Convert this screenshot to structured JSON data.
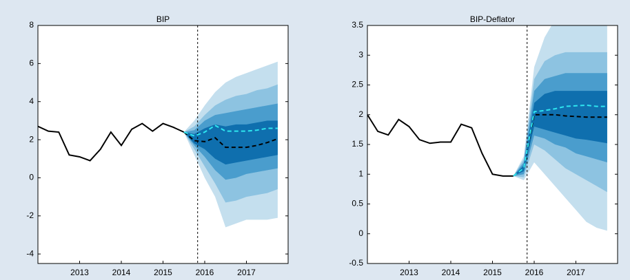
{
  "chart_data": [
    {
      "type": "fan",
      "title": "BIP",
      "xlim": [
        2012,
        2018
      ],
      "xticks": [
        2013,
        2014,
        2015,
        2016,
        2017
      ],
      "ylim": [
        -4.5,
        8
      ],
      "yticks": [
        -4,
        -2,
        0,
        2,
        4,
        6,
        8
      ],
      "vline": 2015.83,
      "forecast_x": [
        2015.5,
        2015.75,
        2016,
        2016.25,
        2016.5,
        2016.75,
        2017,
        2017.25,
        2017.5,
        2017.75
      ],
      "bands": [
        {
          "color": "#c4dfee",
          "upper": [
            2.4,
            3.0,
            3.8,
            4.5,
            5.0,
            5.3,
            5.5,
            5.7,
            5.9,
            6.1
          ],
          "lower": [
            2.4,
            1.2,
            0.0,
            -1.0,
            -2.6,
            -2.4,
            -2.2,
            -2.2,
            -2.2,
            -2.1
          ]
        },
        {
          "color": "#8dc3e1",
          "upper": [
            2.4,
            2.7,
            3.3,
            3.8,
            4.1,
            4.3,
            4.4,
            4.6,
            4.7,
            4.9
          ],
          "lower": [
            2.4,
            1.5,
            0.6,
            -0.3,
            -1.3,
            -1.2,
            -1.0,
            -0.9,
            -0.8,
            -0.6
          ]
        },
        {
          "color": "#4a9dcd",
          "upper": [
            2.4,
            2.5,
            3.0,
            3.3,
            3.4,
            3.5,
            3.6,
            3.7,
            3.8,
            3.9
          ],
          "lower": [
            2.4,
            1.7,
            1.1,
            0.4,
            -0.1,
            0.0,
            0.2,
            0.3,
            0.4,
            0.5
          ]
        },
        {
          "color": "#0f6fae",
          "upper": [
            2.4,
            2.3,
            2.6,
            2.8,
            2.7,
            2.8,
            2.8,
            2.9,
            3.0,
            3.0
          ],
          "lower": [
            2.4,
            1.8,
            1.5,
            1.0,
            0.7,
            0.8,
            0.9,
            1.0,
            1.1,
            1.2
          ]
        }
      ],
      "series": [
        {
          "color": "#000000",
          "dashed": false,
          "x": [
            2012,
            2012.25,
            2012.5,
            2012.75,
            2013,
            2013.25,
            2013.5,
            2013.75,
            2014,
            2014.25,
            2014.5,
            2014.75,
            2015,
            2015.25,
            2015.5
          ],
          "values": [
            2.7,
            2.45,
            2.4,
            1.2,
            1.1,
            0.9,
            1.5,
            2.4,
            1.7,
            2.55,
            2.85,
            2.45,
            2.85,
            2.65,
            2.4
          ]
        },
        {
          "color": "#000000",
          "dashed": true,
          "x": [
            2015.5,
            2015.75,
            2016,
            2016.25,
            2016.5,
            2016.75,
            2017,
            2017.25,
            2017.5,
            2017.75
          ],
          "values": [
            2.4,
            1.95,
            1.9,
            2.1,
            1.6,
            1.6,
            1.6,
            1.7,
            1.85,
            2.05
          ]
        },
        {
          "color": "#2ee6f0",
          "dashed": true,
          "x": [
            2015.5,
            2015.75,
            2016,
            2016.25,
            2016.5,
            2016.75,
            2017,
            2017.25,
            2017.5,
            2017.75
          ],
          "values": [
            2.4,
            2.2,
            2.4,
            2.75,
            2.45,
            2.45,
            2.45,
            2.5,
            2.6,
            2.6
          ]
        }
      ]
    },
    {
      "type": "fan",
      "title": "BIP-Deflator",
      "xlim": [
        2012,
        2018
      ],
      "xticks": [
        2013,
        2014,
        2015,
        2016,
        2017
      ],
      "ylim": [
        -0.5,
        3.5
      ],
      "yticks": [
        -0.5,
        0,
        0.5,
        1,
        1.5,
        2,
        2.5,
        3,
        3.5
      ],
      "vline": 2015.83,
      "forecast_x": [
        2015.5,
        2015.75,
        2016,
        2016.25,
        2016.5,
        2016.75,
        2017,
        2017.25,
        2017.5,
        2017.75
      ],
      "bands": [
        {
          "color": "#c4dfee",
          "upper": [
            0.97,
            1.3,
            2.8,
            3.3,
            3.6,
            3.7,
            3.8,
            3.8,
            3.8,
            3.8
          ],
          "lower": [
            0.97,
            0.9,
            1.2,
            1.0,
            0.8,
            0.6,
            0.4,
            0.2,
            0.1,
            0.05
          ]
        },
        {
          "color": "#8dc3e1",
          "upper": [
            0.97,
            1.25,
            2.6,
            2.9,
            3.0,
            3.05,
            3.05,
            3.05,
            3.05,
            3.05
          ],
          "lower": [
            0.97,
            0.95,
            1.5,
            1.4,
            1.25,
            1.1,
            1.0,
            0.9,
            0.8,
            0.7
          ]
        },
        {
          "color": "#4a9dcd",
          "upper": [
            0.97,
            1.2,
            2.4,
            2.6,
            2.65,
            2.7,
            2.7,
            2.7,
            2.7,
            2.7
          ],
          "lower": [
            0.97,
            1.0,
            1.65,
            1.6,
            1.5,
            1.45,
            1.35,
            1.3,
            1.25,
            1.2
          ]
        },
        {
          "color": "#0f6fae",
          "upper": [
            0.97,
            1.15,
            2.2,
            2.35,
            2.4,
            2.4,
            2.4,
            2.4,
            2.4,
            2.4
          ],
          "lower": [
            0.97,
            1.05,
            1.8,
            1.75,
            1.7,
            1.65,
            1.6,
            1.58,
            1.55,
            1.52
          ]
        }
      ],
      "series": [
        {
          "color": "#000000",
          "dashed": false,
          "x": [
            2012,
            2012.25,
            2012.5,
            2012.75,
            2013,
            2013.25,
            2013.5,
            2013.75,
            2014,
            2014.25,
            2014.5,
            2014.75,
            2015,
            2015.25,
            2015.5
          ],
          "values": [
            2.0,
            1.72,
            1.66,
            1.92,
            1.8,
            1.58,
            1.52,
            1.54,
            1.54,
            1.84,
            1.78,
            1.35,
            1.0,
            0.97,
            0.97
          ]
        },
        {
          "color": "#000000",
          "dashed": true,
          "x": [
            2015.5,
            2015.75,
            2016,
            2016.25,
            2016.5,
            2016.75,
            2017,
            2017.25,
            2017.5,
            2017.75
          ],
          "values": [
            0.97,
            1.1,
            2.0,
            2.0,
            2.0,
            1.98,
            1.97,
            1.96,
            1.96,
            1.96
          ]
        },
        {
          "color": "#2ee6f0",
          "dashed": true,
          "x": [
            2015.5,
            2015.75,
            2016,
            2016.25,
            2016.5,
            2016.75,
            2017,
            2017.25,
            2017.5,
            2017.75
          ],
          "values": [
            0.97,
            1.1,
            2.05,
            2.07,
            2.1,
            2.14,
            2.15,
            2.16,
            2.14,
            2.14
          ]
        }
      ]
    }
  ]
}
